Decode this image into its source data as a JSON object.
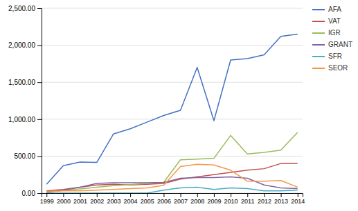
{
  "chart_data": {
    "type": "line",
    "x": [
      1999,
      2000,
      2001,
      2002,
      2003,
      2004,
      2005,
      2006,
      2007,
      2008,
      2009,
      2010,
      2011,
      2012,
      2013,
      2014
    ],
    "series": [
      {
        "name": "AFA",
        "color": "#4472C4",
        "values": [
          120,
          370,
          420,
          415,
          800,
          870,
          960,
          1050,
          1120,
          1700,
          980,
          1800,
          1820,
          1870,
          2120,
          2150
        ]
      },
      {
        "name": "VAT",
        "color": "#C0504D",
        "values": [
          30,
          50,
          80,
          110,
          120,
          110,
          120,
          130,
          190,
          220,
          250,
          280,
          310,
          330,
          400,
          400
        ]
      },
      {
        "name": "IGR",
        "color": "#9BBB59",
        "values": [
          20,
          35,
          55,
          80,
          100,
          115,
          130,
          145,
          450,
          460,
          470,
          780,
          530,
          550,
          580,
          820
        ]
      },
      {
        "name": "GRANT",
        "color": "#8064A2",
        "values": [
          10,
          40,
          80,
          130,
          140,
          140,
          140,
          145,
          200,
          210,
          210,
          220,
          200,
          110,
          70,
          60
        ]
      },
      {
        "name": "SFR",
        "color": "#4BACC6",
        "values": [
          0,
          0,
          0,
          0,
          0,
          0,
          0,
          40,
          70,
          80,
          50,
          70,
          60,
          30,
          30,
          40
        ]
      },
      {
        "name": "SEOR",
        "color": "#F79646",
        "values": [
          20,
          30,
          30,
          40,
          50,
          60,
          70,
          105,
          360,
          390,
          380,
          310,
          160,
          160,
          170,
          80
        ]
      }
    ],
    "xlim": [
      1998.7,
      2014.3
    ],
    "xticks": [
      1999,
      2000,
      2001,
      2002,
      2003,
      2004,
      2005,
      2006,
      2007,
      2008,
      2009,
      2010,
      2011,
      2012,
      2013,
      2014
    ],
    "ylim": [
      0,
      2500
    ],
    "yticks": [
      {
        "value": 0,
        "label": "0.00"
      },
      {
        "value": 500,
        "label": "500.00"
      },
      {
        "value": 1000,
        "label": "1,000.00"
      },
      {
        "value": 1500,
        "label": "1,500.00"
      },
      {
        "value": 2000,
        "label": "2,000.00"
      },
      {
        "value": 2500,
        "label": "2,500.00"
      }
    ],
    "grid": true,
    "legend": "right"
  }
}
